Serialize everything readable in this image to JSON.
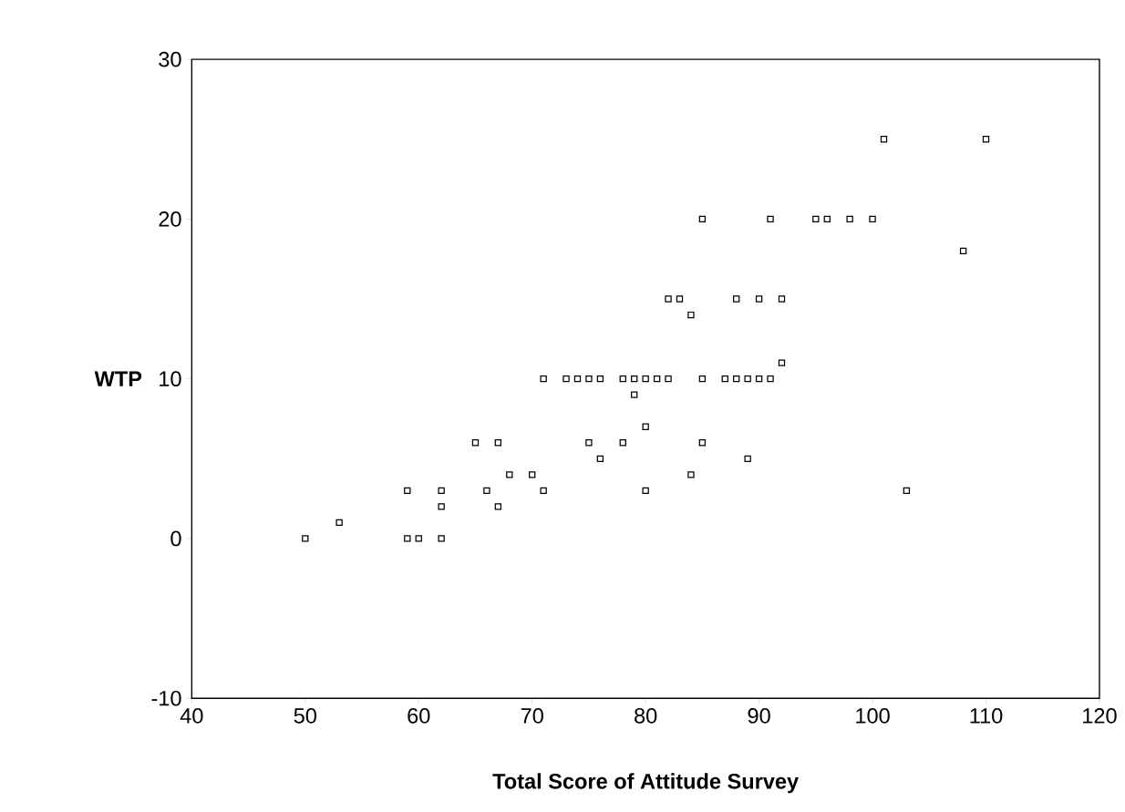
{
  "chart_data": {
    "type": "scatter",
    "xlabel": "Total Score of Attitude Survey",
    "ylabel": "WTP",
    "x": [
      50,
      53,
      59,
      59,
      60,
      62,
      62,
      62,
      65,
      66,
      67,
      67,
      68,
      70,
      71,
      71,
      73,
      74,
      75,
      75,
      76,
      76,
      78,
      78,
      79,
      79,
      80,
      80,
      80,
      81,
      82,
      82,
      83,
      84,
      84,
      85,
      85,
      85,
      87,
      88,
      88,
      89,
      89,
      90,
      90,
      91,
      91,
      92,
      92,
      95,
      96,
      98,
      100,
      101,
      103,
      108,
      110
    ],
    "values": [
      0,
      1,
      3,
      0,
      0,
      3,
      2,
      0,
      6,
      3,
      6,
      2,
      4,
      4,
      10,
      3,
      10,
      10,
      10,
      6,
      10,
      5,
      10,
      6,
      10,
      9,
      10,
      7,
      3,
      10,
      10,
      15,
      15,
      14,
      4,
      20,
      10,
      6,
      10,
      15,
      10,
      10,
      5,
      15,
      10,
      10,
      20,
      15,
      11,
      20,
      20,
      20,
      20,
      25,
      3,
      18,
      25
    ],
    "color": "#000000",
    "marker": "square",
    "xlim": [
      40,
      120
    ],
    "ylim": [
      -10,
      30
    ],
    "xticks": [
      40,
      50,
      60,
      70,
      80,
      90,
      100,
      110,
      120
    ],
    "yticks": [
      -10,
      0,
      10,
      20,
      30
    ]
  }
}
